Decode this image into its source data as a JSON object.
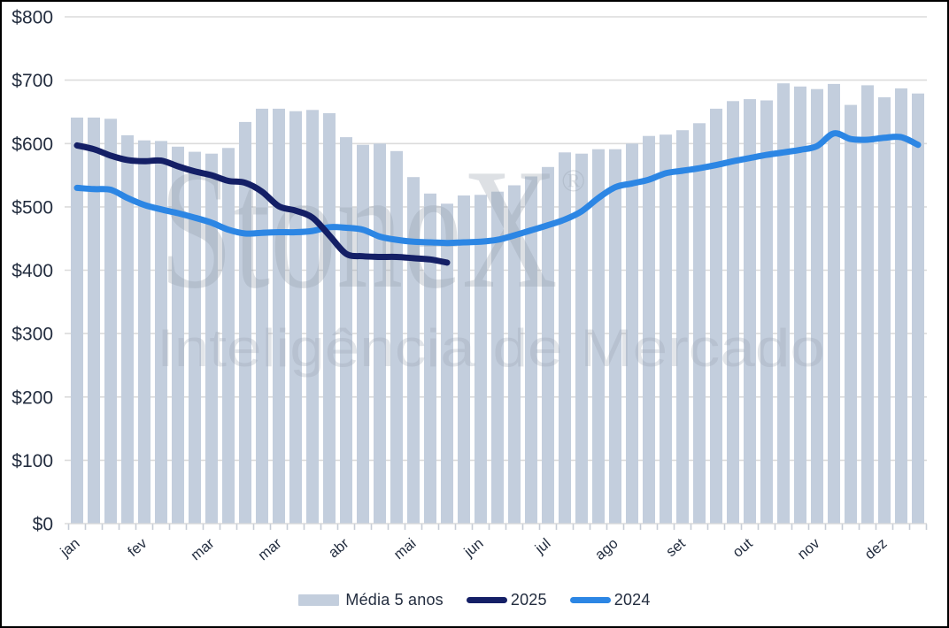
{
  "colors": {
    "background": "#ffffff",
    "frame_border": "#000000",
    "bar": "#c3cedd",
    "line_2025": "#141f66",
    "line_2024": "#2c86e4",
    "gridline": "#dcdcdc",
    "axis_tick": "#c6ccd6",
    "text": "#232d3f",
    "watermark": "#97a0ae"
  },
  "chart_data": {
    "type": "bar+line",
    "title": "",
    "unit": "$ per unit (USD)",
    "x_axis": {
      "tick_labels": [
        "jan",
        "fev",
        "mar",
        "mar",
        "abr",
        "mai",
        "jun",
        "jul",
        "ago",
        "set",
        "out",
        "nov",
        "dez"
      ],
      "tick_week_indices": [
        0,
        4,
        8,
        12,
        16,
        20,
        24,
        28,
        32,
        36,
        40,
        44,
        48
      ],
      "weeks": 51
    },
    "y_axis": {
      "min": 0,
      "max": 800,
      "step": 100,
      "tick_prefix": "$",
      "tick_labels": [
        "$800",
        "$700",
        "$600",
        "$500",
        "$400",
        "$300",
        "$200",
        "$100",
        "$0"
      ]
    },
    "series": [
      {
        "name": "Média 5 anos",
        "type": "bar",
        "color": "#c3cedd",
        "values": [
          641,
          641,
          639,
          613,
          605,
          604,
          595,
          587,
          584,
          593,
          634,
          655,
          655,
          651,
          653,
          648,
          610,
          598,
          600,
          588,
          547,
          521,
          505,
          518,
          519,
          524,
          534,
          548,
          563,
          586,
          584,
          591,
          591,
          600,
          612,
          614,
          621,
          632,
          655,
          667,
          670,
          668,
          695,
          690,
          686,
          694,
          661,
          692,
          673,
          687,
          679
        ]
      },
      {
        "name": "2025",
        "type": "line",
        "color": "#141f66",
        "values": [
          597,
          591,
          581,
          574,
          572,
          573,
          564,
          556,
          550,
          541,
          538,
          524,
          501,
          494,
          483,
          455,
          426,
          422,
          421,
          421,
          419,
          417,
          412
        ]
      },
      {
        "name": "2024",
        "type": "line",
        "color": "#2c86e4",
        "values": [
          530,
          528,
          527,
          514,
          503,
          496,
          490,
          483,
          475,
          464,
          458,
          459,
          460,
          460,
          462,
          468,
          467,
          464,
          453,
          448,
          445,
          444,
          443,
          444,
          445,
          448,
          455,
          463,
          471,
          480,
          493,
          514,
          531,
          537,
          543,
          553,
          557,
          561,
          566,
          572,
          577,
          582,
          586,
          590,
          596,
          616,
          607,
          606,
          609,
          610,
          598
        ]
      }
    ],
    "legend_position": "bottom-center",
    "grid": "horizontal-only",
    "watermark": {
      "brand": "StoneX",
      "registered_mark": "®",
      "subtitle": "Inteligência de Mercado"
    }
  },
  "legend": {
    "items": [
      {
        "label": "Média 5 anos",
        "swatch": "bar"
      },
      {
        "label": "2025",
        "swatch": "line"
      },
      {
        "label": "2024",
        "swatch": "line"
      }
    ]
  }
}
